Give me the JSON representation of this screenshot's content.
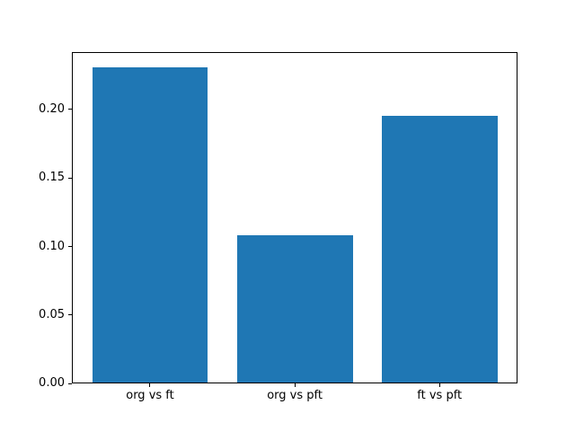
{
  "chart_data": {
    "type": "bar",
    "categories": [
      "org vs ft",
      "org vs pft",
      "ft vs pft"
    ],
    "values": [
      0.2305,
      0.1083,
      0.1954
    ],
    "title": "",
    "xlabel": "",
    "ylabel": "",
    "ylim": [
      0,
      0.242
    ],
    "yticks": [
      0,
      0.05,
      0.1,
      0.15,
      0.2
    ],
    "ytick_labels": [
      "0.00",
      "0.05",
      "0.10",
      "0.15",
      "0.20"
    ],
    "bar_width_units": 0.8,
    "bar_color": "#1f77b4",
    "spine_color": "#000000",
    "background_color": "#ffffff",
    "grid": false,
    "legend": false
  }
}
